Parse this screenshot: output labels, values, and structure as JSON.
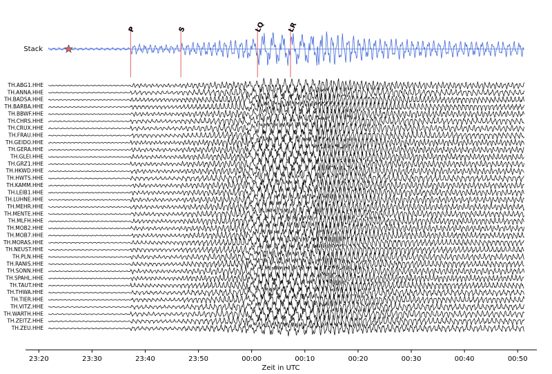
{
  "chart_data": {
    "type": "seismogram",
    "x_label": "Zeit in UTC",
    "xlim": [
      1397.5,
      1493.6
    ],
    "xticks": [
      {
        "value": 1400,
        "label": "23:20"
      },
      {
        "value": 1410,
        "label": "23:30"
      },
      {
        "value": 1420,
        "label": "23:40"
      },
      {
        "value": 1430,
        "label": "23:50"
      },
      {
        "value": 1440,
        "label": "00:00"
      },
      {
        "value": 1450,
        "label": "00:10"
      },
      {
        "value": 1460,
        "label": "00:20"
      },
      {
        "value": 1470,
        "label": "00:30"
      },
      {
        "value": 1480,
        "label": "00:40"
      },
      {
        "value": 1490,
        "label": "00:50"
      }
    ],
    "stack_label": "Stack",
    "stack_color": "#4169d8",
    "trace_color": "#000000",
    "marker_color": "#e06060",
    "event_time": 1405.6,
    "phases": [
      {
        "name": "P",
        "time": 1417.25
      },
      {
        "name": "S",
        "time": 1426.7
      },
      {
        "name": "LQ",
        "time": 1441.1
      },
      {
        "name": "LR",
        "time": 1447.3
      }
    ],
    "stations": [
      "TH.ABG1.HHE",
      "TH.ANNA.HHE",
      "TH.BADSA.HHE",
      "TH.BARBA.HHE",
      "TH.BBWF.HHE",
      "TH.CHRS.HHE",
      "TH.CRUX.HHE",
      "TH.FRAU.HHE",
      "TH.GEIDO.HHE",
      "TH.GERA.HHE",
      "TH.GLEI.HHE",
      "TH.GRZ1.HHE",
      "TH.HKWD.HHE",
      "TH.HWTS.HHE",
      "TH.KAMM.HHE",
      "TH.LEIB1.HHE",
      "TH.LUHNE.HHE",
      "TH.MEHR.HHE",
      "TH.MENTE.HHE",
      "TH.MLFH.HHE",
      "TH.MOB2.HHE",
      "TH.MOB7.HHE",
      "TH.MORAS.HHE",
      "TH.NEUST.HHE",
      "TH.PLN.HHE",
      "TH.RANIS.HHE",
      "TH.SONN.HHE",
      "TH.SPAHL.HHE",
      "TH.TAUT.HHE",
      "TH.THWA.HHE",
      "TH.TIER.HHE",
      "TH.VITZ.HHE",
      "TH.WARTH.HHE",
      "TH.ZEITZ.HHE",
      "TH.ZEU.HHE"
    ]
  }
}
